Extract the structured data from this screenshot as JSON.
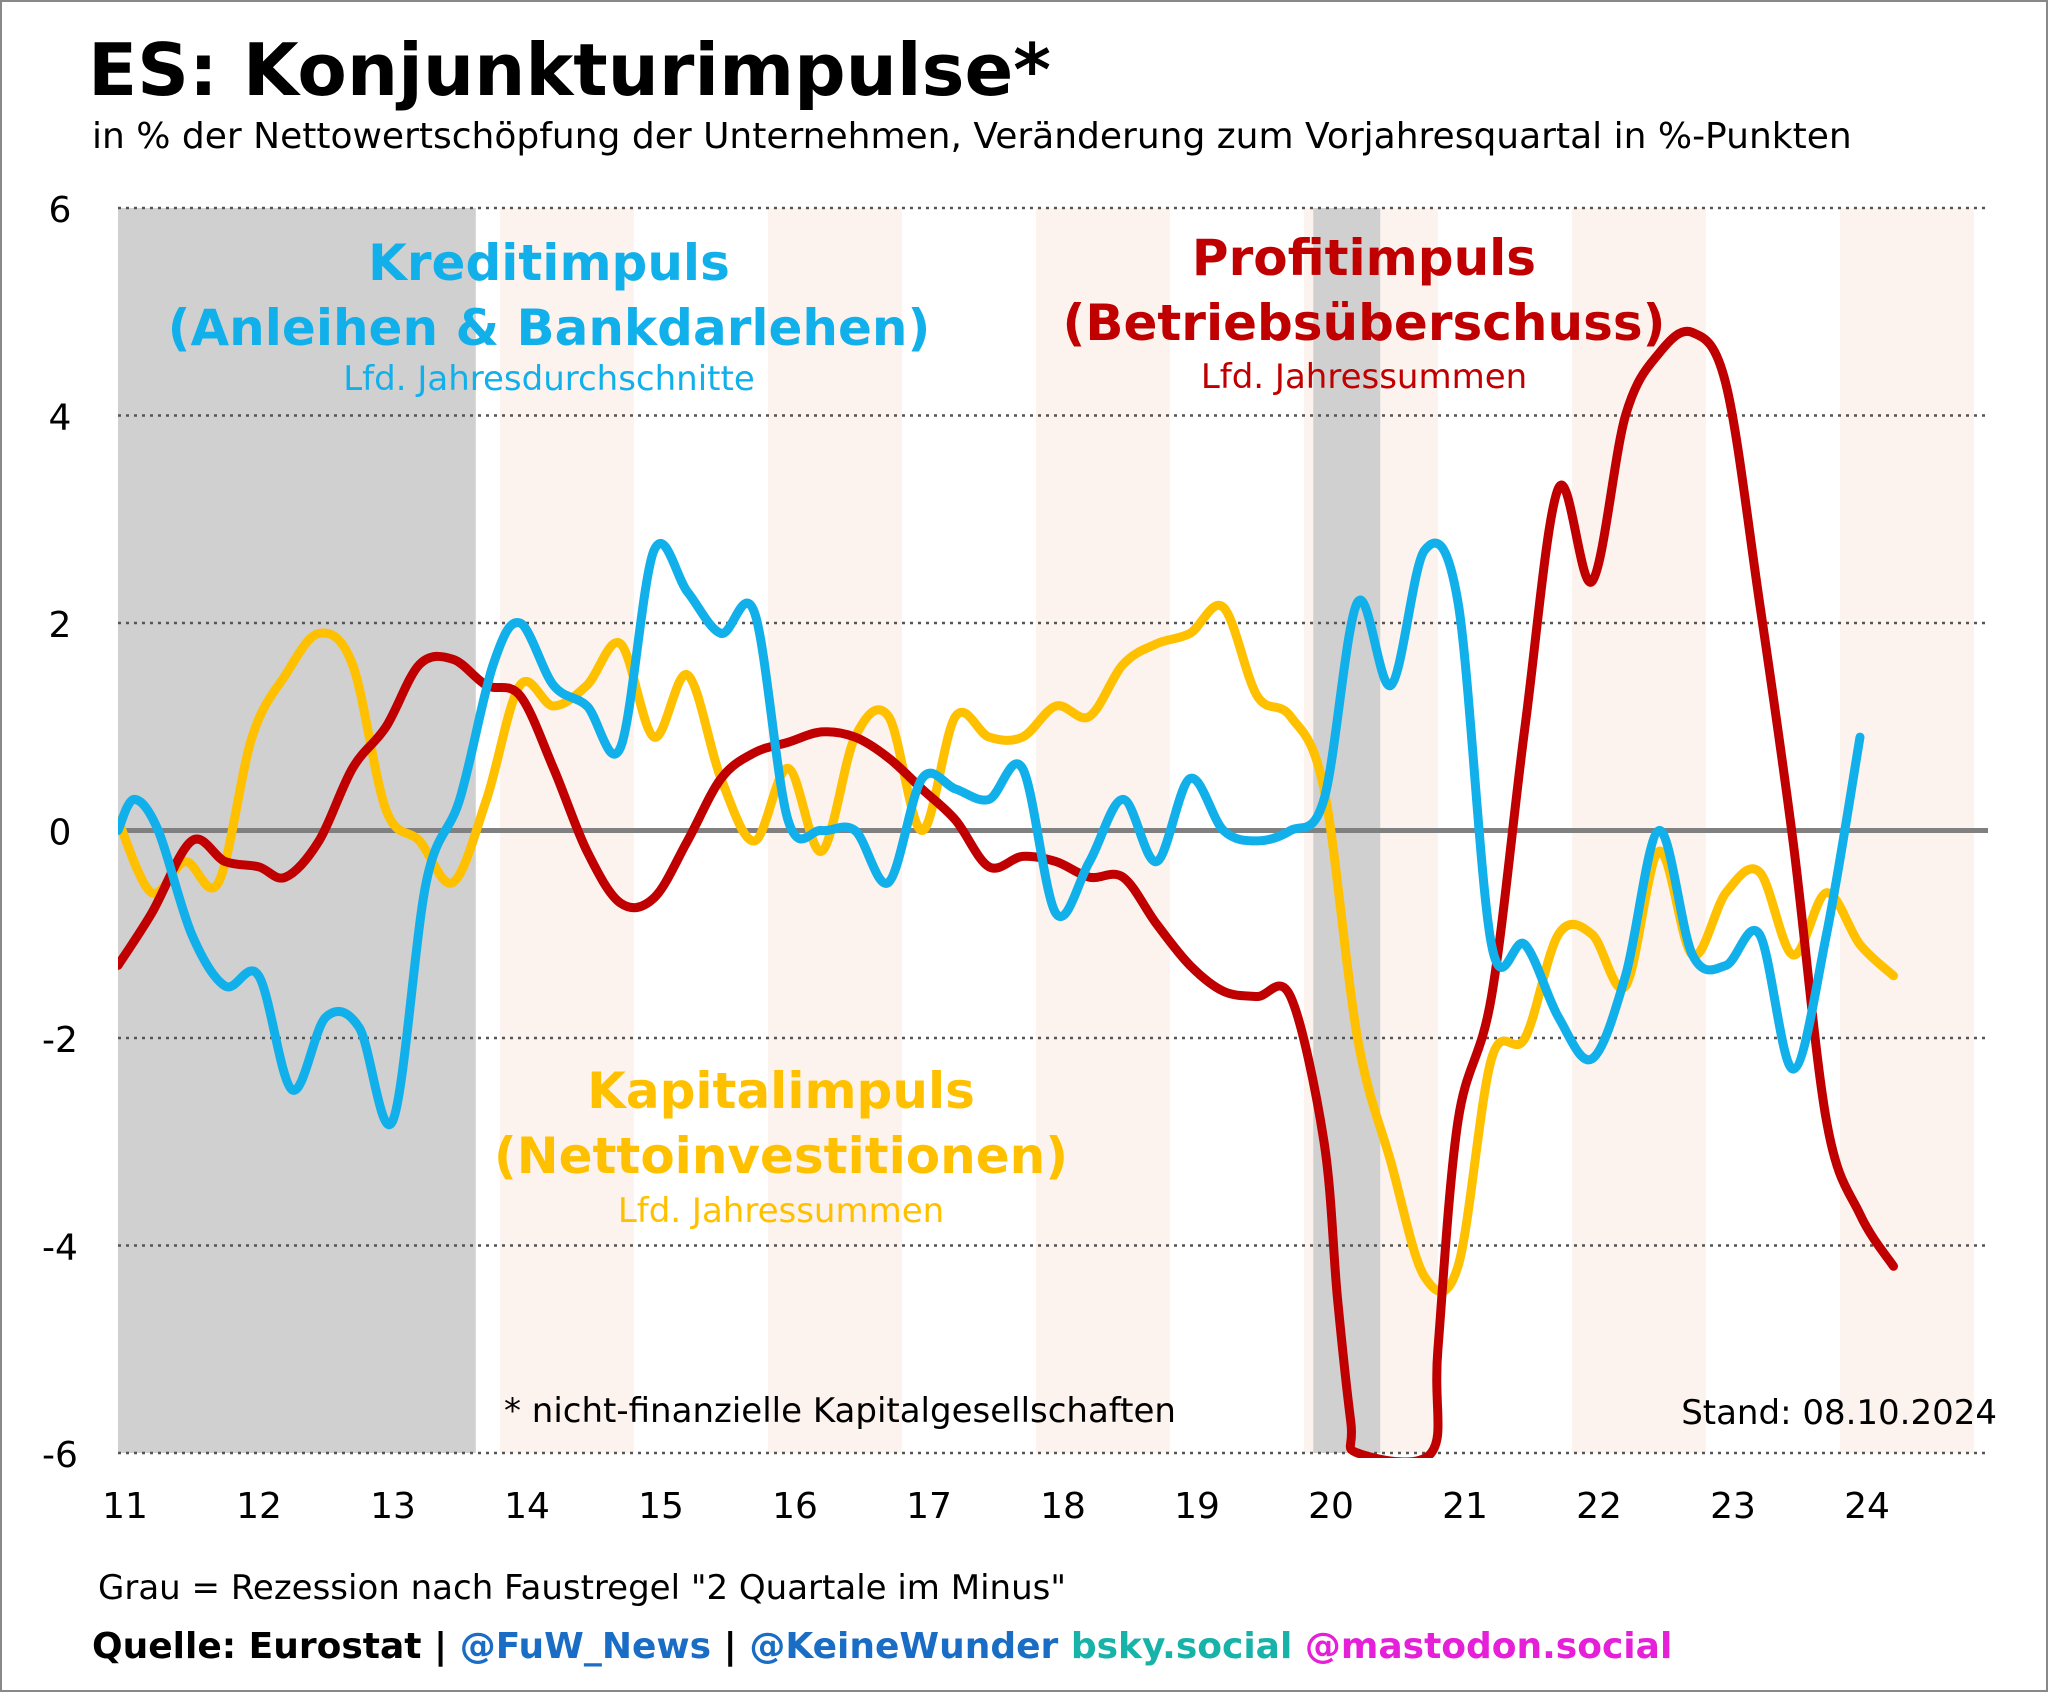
{
  "header": {
    "title": "ES: Konjunkturimpulse*",
    "subtitle": "in % der Nettowertschöpfung der Unternehmen, Veränderung zum Vorjahresquartal in %-Punkten"
  },
  "footer": {
    "recession_note": "Grau = Rezession nach Faustregel \"2 Quartale im Minus\"",
    "source_label": "Quelle: Eurostat | ",
    "handle_fuw": "@FuW_News",
    "sep": " | ",
    "handle_kw": "@KeineWunder",
    "bsky": " bsky.social",
    "mastodon": " @mastodon.social"
  },
  "colors": {
    "credit": "#12b0ea",
    "profit": "#c00000",
    "capital": "#ffc000",
    "recession": "#d0d0d0",
    "alt_year": "#fdf3ee",
    "zero_line": "#808080",
    "grid": "#555555"
  },
  "chart_data": {
    "type": "line",
    "ylim": [
      -6,
      6
    ],
    "yticks": [
      6,
      4,
      2,
      0,
      -2,
      -4,
      -6
    ],
    "xlim": [
      2011.0,
      2025.0
    ],
    "xticks": [
      {
        "value": 2011,
        "label": "11"
      },
      {
        "value": 2012,
        "label": "12"
      },
      {
        "value": 2013,
        "label": "13"
      },
      {
        "value": 2014,
        "label": "14"
      },
      {
        "value": 2015,
        "label": "15"
      },
      {
        "value": 2016,
        "label": "16"
      },
      {
        "value": 2017,
        "label": "17"
      },
      {
        "value": 2018,
        "label": "18"
      },
      {
        "value": 2019,
        "label": "19"
      },
      {
        "value": 2020,
        "label": "20"
      },
      {
        "value": 2021,
        "label": "21"
      },
      {
        "value": 2022,
        "label": "22"
      },
      {
        "value": 2023,
        "label": "23"
      },
      {
        "value": 2024,
        "label": "24"
      }
    ],
    "grid": "horizontal dotted",
    "recessions": [
      [
        2011.0,
        2013.67
      ],
      [
        2019.92,
        2020.42
      ]
    ],
    "annotations": {
      "footnote": "* nicht-finanzielle Kapitalgesellschaften",
      "stand": "Stand: 08.10.2024"
    },
    "series": [
      {
        "name": "Kreditimpuls",
        "label_line1": "Kreditimpuls",
        "label_line2": "(Anleihen & Bankdarlehen)",
        "label_line3": "Lfd. Jahresdurchschnitte",
        "x": [
          2011.0,
          2011.12,
          2011.3,
          2011.55,
          2011.8,
          2012.05,
          2012.3,
          2012.55,
          2012.8,
          2013.05,
          2013.3,
          2013.55,
          2013.8,
          2014.0,
          2014.25,
          2014.5,
          2014.75,
          2015.0,
          2015.25,
          2015.5,
          2015.75,
          2016.0,
          2016.25,
          2016.5,
          2016.75,
          2017.0,
          2017.25,
          2017.5,
          2017.75,
          2018.0,
          2018.25,
          2018.5,
          2018.75,
          2019.0,
          2019.25,
          2019.5,
          2019.75,
          2020.0,
          2020.25,
          2020.5,
          2020.75,
          2021.0,
          2021.25,
          2021.5,
          2021.75,
          2022.0,
          2022.25,
          2022.5,
          2022.75,
          2023.0,
          2023.25,
          2023.5,
          2023.75,
          2024.0
        ],
        "y": [
          0.0,
          0.3,
          0.0,
          -1.0,
          -1.5,
          -1.4,
          -2.5,
          -1.8,
          -1.9,
          -2.8,
          -0.5,
          0.3,
          1.6,
          2.0,
          1.4,
          1.2,
          0.8,
          2.7,
          2.3,
          1.9,
          2.1,
          0.1,
          0.0,
          0.0,
          -0.5,
          0.5,
          0.4,
          0.3,
          0.6,
          -0.8,
          -0.3,
          0.3,
          -0.3,
          0.5,
          0.0,
          -0.1,
          0.0,
          0.3,
          2.2,
          1.4,
          2.7,
          2.2,
          -1.1,
          -1.1,
          -1.8,
          -2.2,
          -1.4,
          0.0,
          -1.2,
          -1.3,
          -1.0,
          -2.3,
          -1.0,
          0.9
        ]
      },
      {
        "name": "Profitimpuls",
        "label_line1": "Profitimpuls",
        "label_line2": "(Betriebsüberschuss)",
        "label_line3": "Lfd. Jahressummen",
        "x": [
          2011.0,
          2011.25,
          2011.55,
          2011.8,
          2012.05,
          2012.25,
          2012.5,
          2012.75,
          2013.0,
          2013.25,
          2013.5,
          2013.75,
          2014.0,
          2014.25,
          2014.5,
          2014.75,
          2015.0,
          2015.25,
          2015.5,
          2015.75,
          2016.0,
          2016.25,
          2016.5,
          2016.75,
          2017.0,
          2017.25,
          2017.5,
          2017.75,
          2018.0,
          2018.25,
          2018.5,
          2018.75,
          2019.0,
          2019.25,
          2019.5,
          2019.75,
          2020.0,
          2020.1,
          2020.2,
          2020.25,
          2020.8,
          2020.85,
          2021.0,
          2021.25,
          2021.5,
          2021.75,
          2022.0,
          2022.25,
          2022.5,
          2022.75,
          2023.0,
          2023.25,
          2023.5,
          2023.75,
          2024.0,
          2024.25
        ],
        "y": [
          -1.3,
          -0.8,
          -0.1,
          -0.3,
          -0.35,
          -0.45,
          -0.1,
          0.6,
          1.0,
          1.6,
          1.65,
          1.4,
          1.3,
          0.6,
          -0.2,
          -0.7,
          -0.65,
          -0.1,
          0.5,
          0.75,
          0.85,
          0.95,
          0.9,
          0.7,
          0.4,
          0.1,
          -0.35,
          -0.25,
          -0.3,
          -0.45,
          -0.45,
          -0.9,
          -1.3,
          -1.55,
          -1.6,
          -1.6,
          -3.0,
          -4.5,
          -5.7,
          -6.0,
          -6.0,
          -5.0,
          -2.8,
          -1.6,
          1.0,
          3.3,
          2.4,
          4.0,
          4.6,
          4.8,
          4.3,
          2.2,
          -0.1,
          -2.8,
          -3.7,
          -4.2
        ]
      },
      {
        "name": "Kapitalimpuls",
        "label_line1": "Kapitalimpuls",
        "label_line2": "(Nettoinvestitionen)",
        "label_line3": "Lfd. Jahressummen",
        "x": [
          2011.0,
          2011.25,
          2011.5,
          2011.75,
          2012.0,
          2012.25,
          2012.5,
          2012.75,
          2013.0,
          2013.25,
          2013.5,
          2013.75,
          2014.0,
          2014.25,
          2014.5,
          2014.75,
          2015.0,
          2015.25,
          2015.5,
          2015.75,
          2016.0,
          2016.25,
          2016.5,
          2016.75,
          2017.0,
          2017.25,
          2017.5,
          2017.75,
          2018.0,
          2018.25,
          2018.5,
          2018.75,
          2019.0,
          2019.25,
          2019.5,
          2019.75,
          2020.0,
          2020.25,
          2020.5,
          2020.75,
          2021.0,
          2021.25,
          2021.5,
          2021.75,
          2022.0,
          2022.25,
          2022.5,
          2022.75,
          2023.0,
          2023.25,
          2023.5,
          2023.75,
          2024.0,
          2024.25
        ],
        "y": [
          0.1,
          -0.6,
          -0.3,
          -0.5,
          0.9,
          1.5,
          1.9,
          1.6,
          0.2,
          -0.1,
          -0.5,
          0.3,
          1.4,
          1.2,
          1.4,
          1.8,
          0.9,
          1.5,
          0.5,
          -0.1,
          0.6,
          -0.2,
          0.9,
          1.1,
          0.0,
          1.1,
          0.9,
          0.9,
          1.2,
          1.1,
          1.6,
          1.8,
          1.9,
          2.15,
          1.3,
          1.1,
          0.4,
          -2.0,
          -3.2,
          -4.3,
          -4.2,
          -2.2,
          -2.0,
          -1.0,
          -1.0,
          -1.5,
          -0.2,
          -1.2,
          -0.6,
          -0.4,
          -1.2,
          -0.6,
          -1.1,
          -1.4
        ]
      }
    ]
  }
}
